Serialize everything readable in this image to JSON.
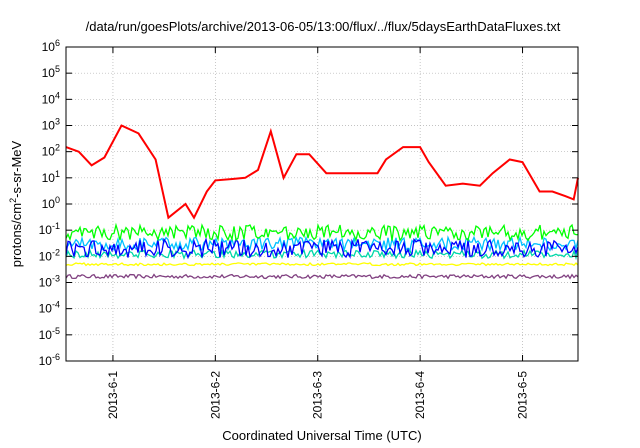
{
  "chart_data": {
    "type": "line",
    "title": "/data/run/goesPlots/archive/2013-06-05/13:00/flux/../flux/5daysEarthDataFluxes.txt",
    "xlabel": "Coordinated Universal Time (UTC)",
    "ylabel_base": "protons/cm",
    "ylabel_sup": "2",
    "ylabel_rest": "-s-sr-MeV",
    "yscale": "log",
    "ylim": [
      1e-06,
      1000000.0
    ],
    "xlim": [
      "2013-05-31T13:00",
      "2013-06-05T13:00"
    ],
    "grid": true,
    "x_ticks": [
      "2013-6-1",
      "2013-6-2",
      "2013-6-3",
      "2013-6-4",
      "2013-6-5"
    ],
    "y_ticks": [
      {
        "base": "10",
        "exp": "-6"
      },
      {
        "base": "10",
        "exp": "-5"
      },
      {
        "base": "10",
        "exp": "-4"
      },
      {
        "base": "10",
        "exp": "-3"
      },
      {
        "base": "10",
        "exp": "-2"
      },
      {
        "base": "10",
        "exp": "-1"
      },
      {
        "base": "10",
        "exp": "0"
      },
      {
        "base": "10",
        "exp": "1"
      },
      {
        "base": "10",
        "exp": "2"
      },
      {
        "base": "10",
        "exp": "3"
      },
      {
        "base": "10",
        "exp": "4"
      },
      {
        "base": "10",
        "exp": "5"
      },
      {
        "base": "10",
        "exp": "6"
      }
    ],
    "series": [
      {
        "color": "#ff0000",
        "x": [
          "2013-05-31T13:00",
          "2013-05-31T16:00",
          "2013-05-31T19:00",
          "2013-05-31T22:00",
          "2013-06-01T02:00",
          "2013-06-01T06:00",
          "2013-06-01T10:00",
          "2013-06-01T13:00",
          "2013-06-01T17:00",
          "2013-06-01T19:00",
          "2013-06-01T22:00",
          "2013-06-02T00:00",
          "2013-06-02T04:00",
          "2013-06-02T07:00",
          "2013-06-02T10:00",
          "2013-06-02T13:00",
          "2013-06-02T16:00",
          "2013-06-02T19:00",
          "2013-06-02T22:00",
          "2013-06-03T02:00",
          "2013-06-03T06:00",
          "2013-06-03T10:00",
          "2013-06-03T14:00",
          "2013-06-03T16:00",
          "2013-06-03T20:00",
          "2013-06-04T00:00",
          "2013-06-04T02:00",
          "2013-06-04T06:00",
          "2013-06-04T10:00",
          "2013-06-04T14:00",
          "2013-06-04T17:00",
          "2013-06-04T21:00",
          "2013-06-05T00:00",
          "2013-06-05T04:00",
          "2013-06-05T07:00",
          "2013-06-05T10:00",
          "2013-06-05T12:00",
          "2013-06-05T13:00"
        ],
        "values": [
          150,
          100,
          30,
          60,
          1000,
          500,
          50,
          0.3,
          1,
          0.3,
          3,
          8,
          9,
          10,
          20,
          600,
          10,
          80,
          80,
          15,
          15,
          15,
          15,
          50,
          150,
          150,
          40,
          5,
          6,
          5,
          15,
          50,
          40,
          3,
          3,
          2,
          1.5,
          10
        ]
      },
      {
        "color": "#00ff00",
        "level": 0.08,
        "spread": 0.6
      },
      {
        "color": "#0000ff",
        "level": 0.02,
        "spread": 0.7
      },
      {
        "color": "#00c0ff",
        "level": 0.03,
        "spread": 0.5
      },
      {
        "color": "#00d8a8",
        "level": 0.012,
        "spread": 0.3
      },
      {
        "color": "#ffff00",
        "level": 0.005,
        "spread": 0.1
      },
      {
        "color": "#804080",
        "level": 0.0017,
        "spread": 0.15
      }
    ]
  }
}
